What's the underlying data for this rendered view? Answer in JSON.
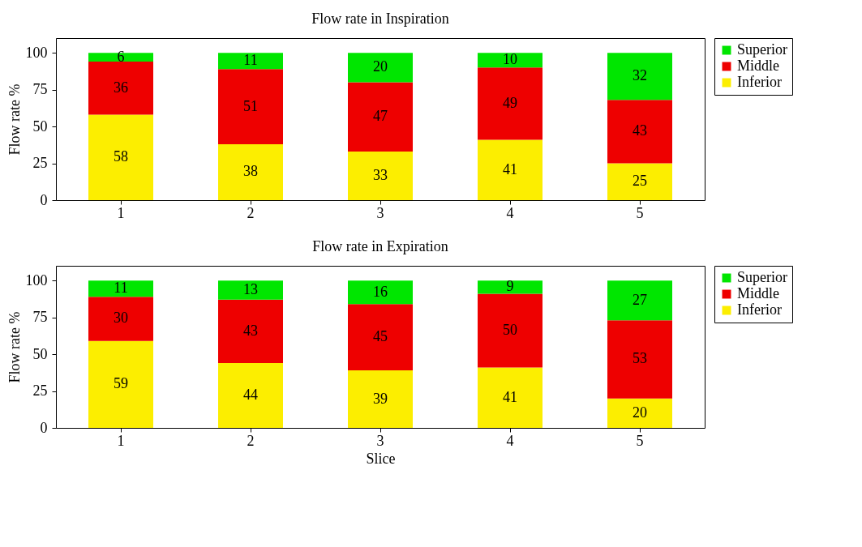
{
  "chart_data": [
    {
      "type": "bar",
      "title": "Flow rate in Inspiration",
      "ylabel": "Flow rate %",
      "categories": [
        "1",
        "2",
        "3",
        "4",
        "5"
      ],
      "stacked": true,
      "data_labels": true,
      "legend": "top right",
      "ylim": [
        0,
        110
      ],
      "yticks": [
        0,
        25,
        50,
        75,
        100
      ],
      "series": [
        {
          "name": "Inferior",
          "color": "#fcee00",
          "values": [
            58,
            38,
            33,
            41,
            25
          ]
        },
        {
          "name": "Middle",
          "color": "#ee0000",
          "values": [
            36,
            51,
            47,
            49,
            43
          ]
        },
        {
          "name": "Superior",
          "color": "#00e600",
          "values": [
            6,
            11,
            20,
            10,
            32
          ]
        }
      ]
    },
    {
      "type": "bar",
      "title": "Flow rate in Expiration",
      "xlabel": "Slice",
      "ylabel": "Flow rate %",
      "categories": [
        "1",
        "2",
        "3",
        "4",
        "5"
      ],
      "stacked": true,
      "data_labels": true,
      "legend": "top right",
      "ylim": [
        0,
        110
      ],
      "yticks": [
        0,
        25,
        50,
        75,
        100
      ],
      "series": [
        {
          "name": "Inferior",
          "color": "#fcee00",
          "values": [
            59,
            44,
            39,
            41,
            20
          ]
        },
        {
          "name": "Middle",
          "color": "#ee0000",
          "values": [
            30,
            43,
            45,
            50,
            53
          ]
        },
        {
          "name": "Superior",
          "color": "#00e600",
          "values": [
            11,
            13,
            16,
            9,
            27
          ]
        }
      ]
    }
  ]
}
